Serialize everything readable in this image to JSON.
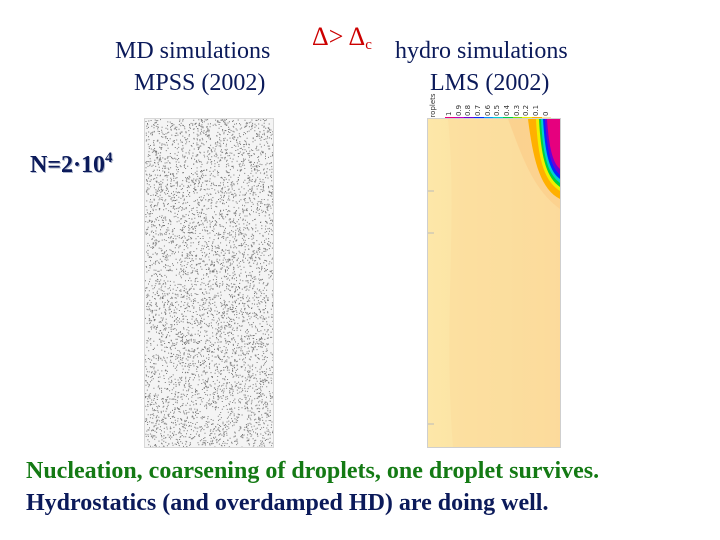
{
  "header": {
    "left_title_line1": "MD simulations",
    "left_title_line2": "MPSS (2002)",
    "right_title_line1": "hydro simulations",
    "right_title_line2": "LMS (2002)",
    "condition_symbol": "Δ>",
    "condition_symbol2": "Δ",
    "condition_subscript": "c"
  },
  "side_label": {
    "text": "N=2·10",
    "exponent": "4"
  },
  "captions": {
    "line1": "Nucleation, coarsening of droplets, one droplet survives.",
    "line2": "Hydrostatics (and overdamped HD) are doing well."
  },
  "hydro_legend": {
    "title": "droplets",
    "ticks": [
      "1",
      "0.9",
      "0.8",
      "0.7",
      "0.6",
      "0.5",
      "0.4",
      "0.3",
      "0.2",
      "0.1",
      "0"
    ],
    "colors": [
      "#e6007e",
      "#c000c0",
      "#6a00d8",
      "#0028ff",
      "#0090ff",
      "#00d0d0",
      "#00d040",
      "#80e000",
      "#f0f000",
      "#ffb000",
      "#fbe3a3"
    ]
  },
  "colors": {
    "title_text": "#0b1a5a",
    "caption_highlight": "#147a14",
    "condition_red": "#cc0000",
    "hydro_background": "#fbe3a3"
  }
}
